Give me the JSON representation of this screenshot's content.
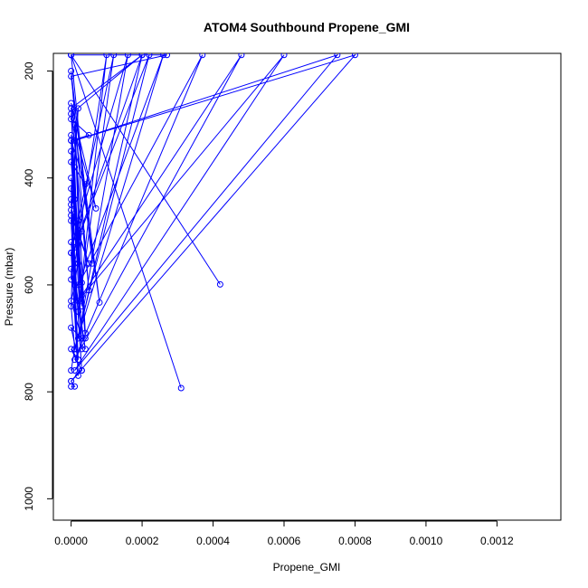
{
  "chart_data": {
    "type": "line",
    "title": "ATOM4 Southbound Propene_GMI",
    "xlabel": "Propene_GMI",
    "ylabel": "Pressure (mbar)",
    "xlim": [
      -5e-05,
      0.00138
    ],
    "ylim": [
      1040,
      167
    ],
    "y_reversed": true,
    "x_ticks": [
      0.0,
      0.0002,
      0.0004,
      0.0006,
      0.0008,
      0.001,
      0.0012
    ],
    "x_tick_labels": [
      "0.0000",
      "0.0002",
      "0.0004",
      "0.0006",
      "0.0008",
      "0.0010",
      "0.0012"
    ],
    "y_ticks": [
      200,
      400,
      600,
      800,
      1000
    ],
    "y_tick_labels": [
      "200",
      "400",
      "600",
      "800",
      "1000"
    ],
    "series": [
      {
        "color": "#0000ff",
        "marker": "open-circle",
        "x": [
          0.0,
          6e-05,
          0.0,
          5e-05,
          0.0,
          0.0002,
          0.0,
          3e-05,
          1e-05,
          4e-05,
          0.0,
          2e-05,
          0.0,
          4e-05,
          0.0,
          3e-05,
          1e-05,
          0.0,
          2e-05,
          0.0,
          3e-05,
          0.0,
          5e-05,
          0.0,
          3e-05,
          1e-05,
          0.0,
          2e-05,
          0.0,
          4e-05,
          0.0,
          1e-05,
          0.0,
          3e-05,
          0.0,
          2e-05,
          0.0,
          3e-05,
          0.0,
          1e-05,
          0.0
        ],
        "y": [
          170,
          560,
          200,
          610,
          270,
          170,
          280,
          640,
          300,
          690,
          320,
          560,
          330,
          700,
          350,
          720,
          380,
          420,
          740,
          440,
          760,
          460,
          560,
          470,
          500,
          600,
          520,
          650,
          540,
          720,
          570,
          600,
          630,
          700,
          680,
          740,
          720,
          760,
          780,
          790,
          790
        ]
      },
      {
        "color": "#0000ff",
        "marker": "open-circle",
        "x": [
          0.0,
          0.00042,
          0.0,
          0.00031,
          0.0,
          0.00027,
          0.0,
          8e-05,
          0.0,
          7e-05,
          0.0,
          5e-05,
          0.0,
          4e-05,
          0.0,
          3e-05,
          0.0,
          3e-05,
          0.0,
          2e-05,
          0.0,
          2e-05,
          0.0,
          2e-05,
          0.0,
          1e-05,
          0.0,
          1e-05,
          0.0
        ],
        "y": [
          170,
          599,
          170,
          793,
          170,
          170,
          210,
          633,
          260,
          457,
          290,
          320,
          330,
          412,
          370,
          596,
          400,
          620,
          450,
          270,
          480,
          770,
          540,
          480,
          590,
          440,
          640,
          720,
          760
        ]
      },
      {
        "color": "#0000ff",
        "marker": "open-circle",
        "x": [
          0.0,
          0.0008,
          1e-05,
          0.00075,
          1e-05,
          0.0006,
          2e-05,
          0.00048,
          1e-05,
          0.00037,
          2e-05,
          0.00026,
          1e-05,
          0.00022,
          1e-05,
          0.0002,
          2e-05,
          0.00016,
          1e-05,
          0.00012,
          2e-05,
          0.0001,
          1e-05
        ],
        "y": [
          780,
          170,
          330,
          170,
          760,
          170,
          630,
          170,
          740,
          170,
          600,
          170,
          720,
          170,
          530,
          170,
          700,
          170,
          510,
          170,
          650,
          170,
          560
        ]
      }
    ]
  }
}
